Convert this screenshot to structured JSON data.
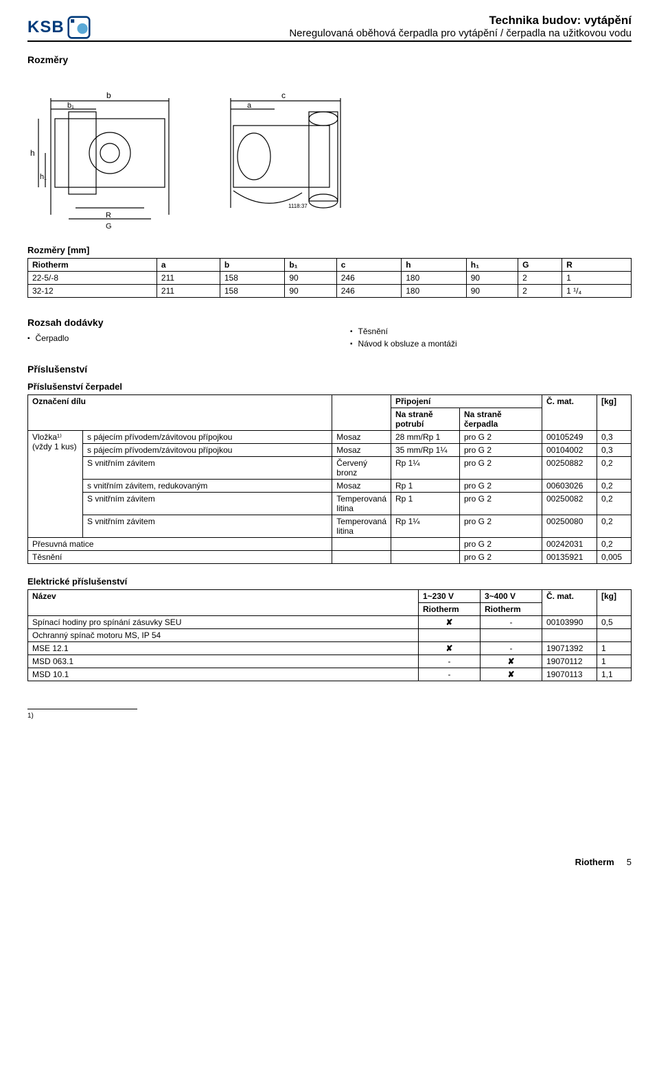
{
  "header": {
    "logo_text": "KSB",
    "title1": "Technika budov: vytápění",
    "title2": "Neregulovaná oběhová čerpadla pro vytápění / čerpadla na užitkovou vodu"
  },
  "sections": {
    "rozmery": "Rozměry",
    "rozmery_sub": "Rozměry [mm]",
    "rozsah": "Rozsah dodávky",
    "prislusenstvi": "Příslušenství",
    "prislusenstvi_cerpadel": "Příslušenství čerpadel",
    "elektricke": "Elektrické příslušenství"
  },
  "dims_table": {
    "headers": [
      "Riotherm",
      "a",
      "b",
      "b₁",
      "c",
      "h",
      "h₁",
      "G",
      "R"
    ],
    "rows": [
      [
        "22-5/-8",
        "211",
        "158",
        "90",
        "246",
        "180",
        "90",
        "2",
        "1"
      ],
      [
        "32-12",
        "211",
        "158",
        "90",
        "246",
        "180",
        "90",
        "2",
        "1 ¹/₄"
      ]
    ]
  },
  "scope": {
    "left": [
      "Čerpadlo"
    ],
    "right": [
      "Těsnění",
      "Návod k obsluze a montáži"
    ]
  },
  "accessories_table": {
    "head": {
      "col1": "Označení dílu",
      "col_prip": "Připojení",
      "col_prip_a": "Na straně potrubí",
      "col_prip_b": "Na straně čerpadla",
      "col_mat": "Č. mat.",
      "col_kg": "[kg]"
    },
    "group_label": "Vložka¹⁾\n(vždy 1 kus)",
    "rows": [
      {
        "desc": "s pájecím přívodem/závitovou přípojkou",
        "mat": "Mosaz",
        "a": "28 mm/Rp 1",
        "b": "pro G 2",
        "num": "00105249",
        "kg": "0,3"
      },
      {
        "desc": "s pájecím přívodem/závitovou přípojkou",
        "mat": "Mosaz",
        "a": "35 mm/Rp 1¼",
        "b": "pro G 2",
        "num": "00104002",
        "kg": "0,3"
      },
      {
        "desc": "S vnitřním závitem",
        "mat": "Červený bronz",
        "a": "Rp 1¼",
        "b": "pro G 2",
        "num": "00250882",
        "kg": "0,2"
      },
      {
        "desc": "s vnitřním závitem, redukovaným",
        "mat": "Mosaz",
        "a": "Rp 1",
        "b": "pro G 2",
        "num": "00603026",
        "kg": "0,2"
      },
      {
        "desc": "S vnitřním závitem",
        "mat": "Temperovaná litina",
        "a": "Rp 1",
        "b": "pro G 2",
        "num": "00250082",
        "kg": "0,2"
      },
      {
        "desc": "S vnitřním závitem",
        "mat": "Temperovaná litina",
        "a": "Rp 1¼",
        "b": "pro G 2",
        "num": "00250080",
        "kg": "0,2"
      }
    ],
    "tail": [
      {
        "desc": "Přesuvná matice",
        "b": "pro G 2",
        "num": "00242031",
        "kg": "0,2"
      },
      {
        "desc": "Těsnění",
        "b": "pro G 2",
        "num": "00135921",
        "kg": "0,005"
      }
    ]
  },
  "elec_table": {
    "head": {
      "name": "Název",
      "v1": "1~230 V",
      "v3": "3~400 V",
      "sub": "Riotherm",
      "mat": "Č. mat.",
      "kg": "[kg]"
    },
    "rows": [
      {
        "name": "Spínací hodiny pro spínání zásuvky SEU",
        "v1": "✘",
        "v3": "-",
        "num": "00103990",
        "kg": "0,5"
      },
      {
        "name": "Ochranný spínač motoru MS, IP 54",
        "v1": "",
        "v3": "",
        "num": "",
        "kg": ""
      },
      {
        "name": "MSE 12.1",
        "v1": "✘",
        "v3": "-",
        "num": "19071392",
        "kg": "1"
      },
      {
        "name": "MSD 063.1",
        "v1": "-",
        "v3": "✘",
        "num": "19070112",
        "kg": "1"
      },
      {
        "name": "MSD 10.1",
        "v1": "-",
        "v3": "✘",
        "num": "19070113",
        "kg": "1,1"
      }
    ]
  },
  "footnote": "1)",
  "footer": {
    "brand": "Riotherm",
    "page": "5"
  },
  "colors": {
    "brand": "#003b7a",
    "brand_light": "#5aa8d6"
  }
}
